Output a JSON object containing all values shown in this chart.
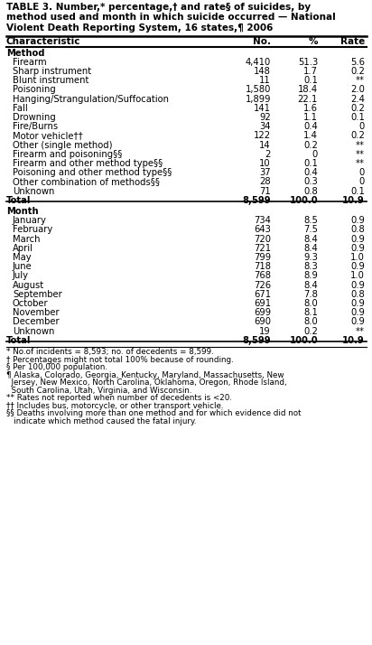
{
  "title_parts": [
    {
      "text": "TABLE 3. Number,* percentage,",
      "bold": true
    },
    {
      "text": "†",
      "bold": true,
      "super": true
    },
    {
      "text": " and rate",
      "bold": true
    },
    {
      "text": "§",
      "bold": true,
      "super": true
    },
    {
      "text": " of suicides, by",
      "bold": true
    }
  ],
  "title_line1": "TABLE 3. Number,* percentage,† and rate§ of suicides, by",
  "title_line2": "method used and month in which suicide occurred — National",
  "title_line3": "Violent Death Reporting System, 16 states,¶ 2006",
  "col_headers": [
    "Characteristic",
    "No.",
    "%",
    "Rate"
  ],
  "sections": [
    {
      "label": "Method",
      "rows": [
        {
          "char": "Firearm",
          "no": "4,410",
          "pct": "51.3",
          "rate": "5.6"
        },
        {
          "char": "Sharp instrument",
          "no": "148",
          "pct": "1.7",
          "rate": "0.2"
        },
        {
          "char": "Blunt instrument",
          "no": "11",
          "pct": "0.1",
          "rate": "**"
        },
        {
          "char": "Poisoning",
          "no": "1,580",
          "pct": "18.4",
          "rate": "2.0"
        },
        {
          "char": "Hanging/Strangulation/Suffocation",
          "no": "1,899",
          "pct": "22.1",
          "rate": "2.4"
        },
        {
          "char": "Fall",
          "no": "141",
          "pct": "1.6",
          "rate": "0.2"
        },
        {
          "char": "Drowning",
          "no": "92",
          "pct": "1.1",
          "rate": "0.1"
        },
        {
          "char": "Fire/Burns",
          "no": "34",
          "pct": "0.4",
          "rate": "0"
        },
        {
          "char": "Motor vehicle††",
          "no": "122",
          "pct": "1.4",
          "rate": "0.2"
        },
        {
          "char": "Other (single method)",
          "no": "14",
          "pct": "0.2",
          "rate": "**"
        },
        {
          "char": "Firearm and poisoning§§",
          "no": "2",
          "pct": "0",
          "rate": "**"
        },
        {
          "char": "Firearm and other method type§§",
          "no": "10",
          "pct": "0.1",
          "rate": "**"
        },
        {
          "char": "Poisoning and other method type§§",
          "no": "37",
          "pct": "0.4",
          "rate": "0"
        },
        {
          "char": "Other combination of methods§§",
          "no": "28",
          "pct": "0.3",
          "rate": "0"
        },
        {
          "char": "Unknown",
          "no": "71",
          "pct": "0.8",
          "rate": "0.1"
        }
      ],
      "total": {
        "char": "Total",
        "no": "8,599",
        "pct": "100.0",
        "rate": "10.9"
      }
    },
    {
      "label": "Month",
      "rows": [
        {
          "char": "January",
          "no": "734",
          "pct": "8.5",
          "rate": "0.9"
        },
        {
          "char": "February",
          "no": "643",
          "pct": "7.5",
          "rate": "0.8"
        },
        {
          "char": "March",
          "no": "720",
          "pct": "8.4",
          "rate": "0.9"
        },
        {
          "char": "April",
          "no": "721",
          "pct": "8.4",
          "rate": "0.9"
        },
        {
          "char": "May",
          "no": "799",
          "pct": "9.3",
          "rate": "1.0"
        },
        {
          "char": "June",
          "no": "718",
          "pct": "8.3",
          "rate": "0.9"
        },
        {
          "char": "July",
          "no": "768",
          "pct": "8.9",
          "rate": "1.0"
        },
        {
          "char": "August",
          "no": "726",
          "pct": "8.4",
          "rate": "0.9"
        },
        {
          "char": "September",
          "no": "671",
          "pct": "7.8",
          "rate": "0.8"
        },
        {
          "char": "October",
          "no": "691",
          "pct": "8.0",
          "rate": "0.9"
        },
        {
          "char": "November",
          "no": "699",
          "pct": "8.1",
          "rate": "0.9"
        },
        {
          "char": "December",
          "no": "690",
          "pct": "8.0",
          "rate": "0.9"
        },
        {
          "char": "Unknown",
          "no": "19",
          "pct": "0.2",
          "rate": "**"
        }
      ],
      "total": {
        "char": "Total",
        "no": "8,599",
        "pct": "100.0",
        "rate": "10.9"
      }
    }
  ],
  "footnotes": [
    [
      "* No.of incidents = 8,593; no. of decedents = 8,599.",
      ""
    ],
    [
      "† Percentages might not total 100% because of rounding.",
      ""
    ],
    [
      "§ Per 100,000 population.",
      ""
    ],
    [
      "¶ Alaska, Colorado, Georgia, Kentucky, Maryland, Massachusetts, New",
      "  Jersey, New Mexico, North Carolina, Oklahoma, Oregon, Rhode Island,",
      "  South Carolina, Utah, Virginia, and Wisconsin."
    ],
    [
      "** Rates not reported when number of decedents is <20.",
      ""
    ],
    [
      "†† Includes bus, motorcycle, or other transport vehicle.",
      ""
    ],
    [
      "§§ Deaths involving more than one method and for which evidence did not",
      "   indicate which method caused the fatal injury."
    ]
  ],
  "bg_color": "#ffffff",
  "text_color": "#000000",
  "line_color": "#000000"
}
